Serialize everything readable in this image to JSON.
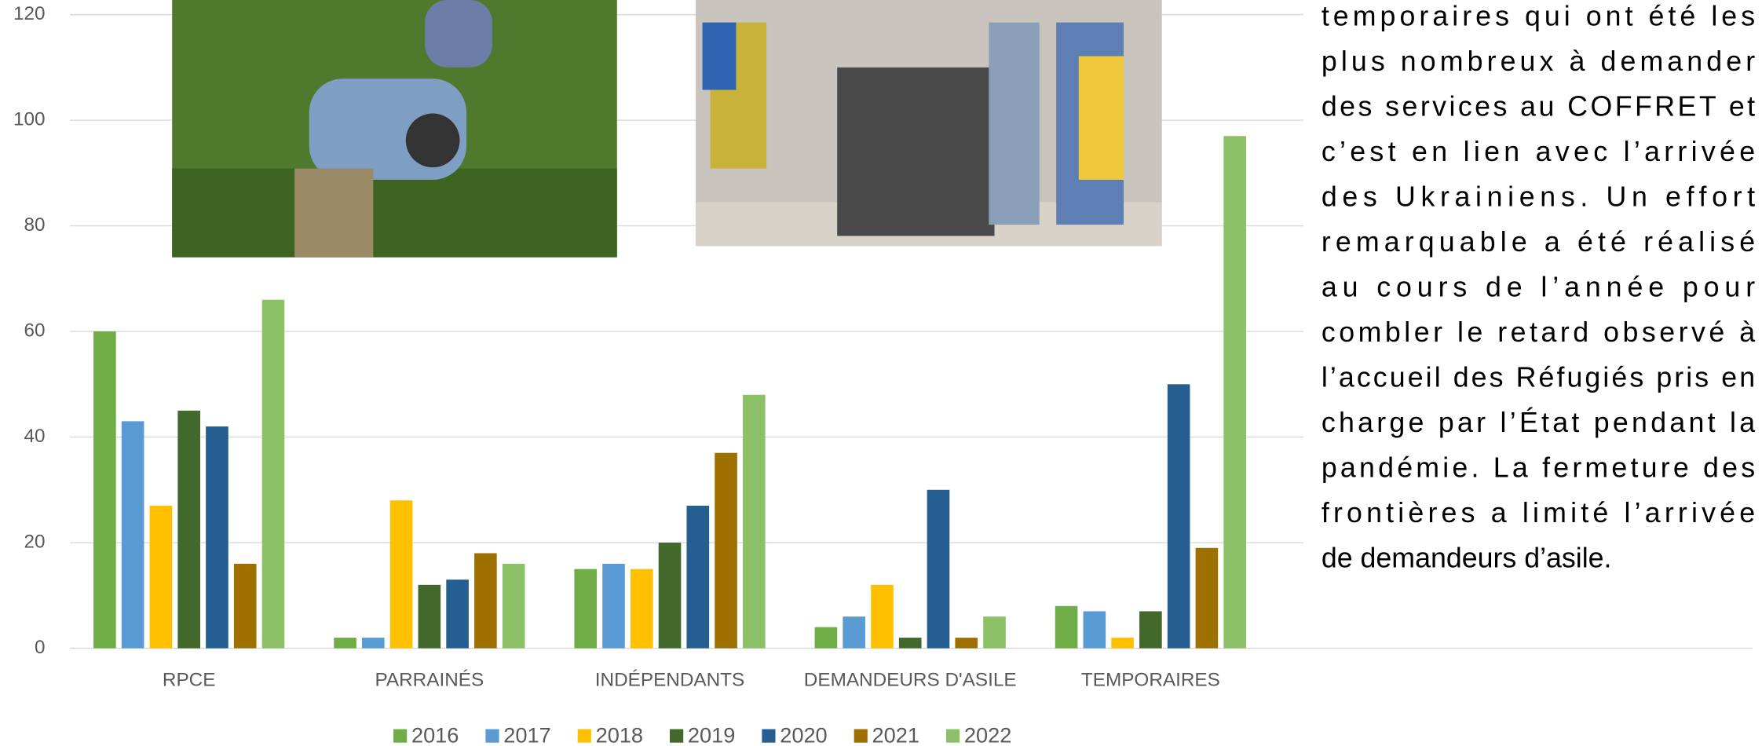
{
  "chart_data": {
    "type": "bar",
    "categories": [
      "RPCE",
      "PARRAINÉS",
      "INDÉPENDANTS",
      "DEMANDEURS D'ASILE",
      "TEMPORAIRES"
    ],
    "series": [
      {
        "name": "2016",
        "color": "#70ad47",
        "values": [
          60,
          2,
          15,
          4,
          8
        ]
      },
      {
        "name": "2017",
        "color": "#5b9bd5",
        "values": [
          43,
          2,
          16,
          6,
          7
        ]
      },
      {
        "name": "2018",
        "color": "#ffc000",
        "values": [
          27,
          28,
          15,
          12,
          2
        ]
      },
      {
        "name": "2019",
        "color": "#43682b",
        "values": [
          45,
          12,
          20,
          2,
          7
        ]
      },
      {
        "name": "2020",
        "color": "#255e91",
        "values": [
          42,
          13,
          27,
          30,
          50
        ]
      },
      {
        "name": "2021",
        "color": "#9e7000",
        "values": [
          16,
          18,
          37,
          2,
          19
        ]
      },
      {
        "name": "2022",
        "color": "#8cc168",
        "values": [
          66,
          16,
          48,
          6,
          97
        ]
      }
    ],
    "ylim": [
      0,
      120
    ],
    "yticks": [
      0,
      20,
      40,
      60,
      80,
      100,
      120
    ],
    "grid": true,
    "legend": "bottom"
  },
  "sidebar_text": {
    "lines": [
      "temporaires qui ont été les",
      "plus nombreux à demander",
      "des services au COFFRET et",
      "c’est en lien avec l’arrivée",
      "des Ukrainiens. Un effort",
      "remarquable a été réalisé",
      "au cours de l’année pour",
      "combler le retard observé à",
      "l’accueil des Réfugiés pris en",
      "charge par l’État pendant la",
      "pandémie. La fermeture des",
      "frontières a limité l’arrivée",
      "de demandeurs d’asile."
    ]
  }
}
